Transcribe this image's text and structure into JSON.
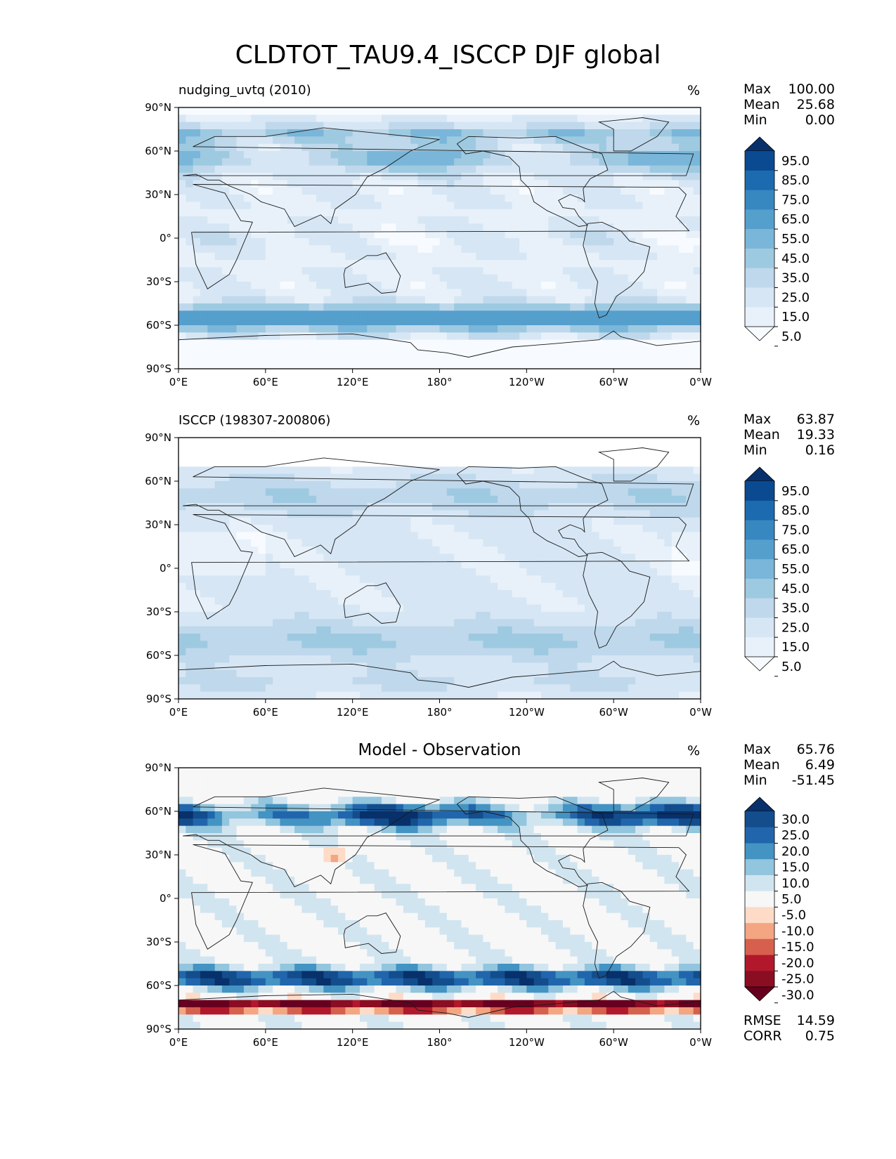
{
  "figure": {
    "title": "CLDTOT_TAU9.4_ISCCP DJF global"
  },
  "axes": {
    "lat_ticks": [
      "90°N",
      "60°N",
      "30°N",
      "0°",
      "30°S",
      "60°S",
      "90°S"
    ],
    "lon_ticks": [
      "0°E",
      "60°E",
      "120°E",
      "180°",
      "120°W",
      "60°W",
      "0°W"
    ]
  },
  "panels": [
    {
      "id": "model",
      "title": "nudging_uvtq (2010)",
      "title_position": "left",
      "units": "%",
      "stats": [
        {
          "label": "Max",
          "value": "100.00"
        },
        {
          "label": "Mean",
          "value": "25.68"
        },
        {
          "label": "Min",
          "value": "0.00"
        }
      ],
      "colorbar": {
        "ticks": [
          "95.0",
          "85.0",
          "75.0",
          "65.0",
          "55.0",
          "45.0",
          "35.0",
          "25.0",
          "15.0",
          "5.0"
        ],
        "colors": [
          "#08306b",
          "#0a4a90",
          "#1c6aaf",
          "#3787c0",
          "#559fcd",
          "#7ab6d9",
          "#9ecae1",
          "#bfd8ec",
          "#d6e6f4",
          "#e8f1fa",
          "#f7fbff"
        ]
      }
    },
    {
      "id": "obs",
      "title": "ISCCP (198307-200806)",
      "title_position": "left",
      "units": "%",
      "stats": [
        {
          "label": "Max",
          "value": "63.87"
        },
        {
          "label": "Mean",
          "value": "19.33"
        },
        {
          "label": "Min",
          "value": "0.16"
        }
      ],
      "colorbar": {
        "ticks": [
          "95.0",
          "85.0",
          "75.0",
          "65.0",
          "55.0",
          "45.0",
          "35.0",
          "25.0",
          "15.0",
          "5.0"
        ],
        "colors": [
          "#08306b",
          "#0a4a90",
          "#1c6aaf",
          "#3787c0",
          "#559fcd",
          "#7ab6d9",
          "#9ecae1",
          "#bfd8ec",
          "#d6e6f4",
          "#e8f1fa",
          "#f7fbff"
        ]
      }
    },
    {
      "id": "diff",
      "title": "Model - Observation",
      "title_position": "center",
      "units": "%",
      "stats": [
        {
          "label": "Max",
          "value": "65.76"
        },
        {
          "label": "Mean",
          "value": "6.49"
        },
        {
          "label": "Min",
          "value": "-51.45"
        }
      ],
      "extra_stats": [
        {
          "label": "RMSE",
          "value": "14.59"
        },
        {
          "label": "CORR",
          "value": "0.75"
        }
      ],
      "colorbar": {
        "ticks": [
          "30.0",
          "25.0",
          "20.0",
          "15.0",
          "10.0",
          "5.0",
          "-5.0",
          "-10.0",
          "-15.0",
          "-20.0",
          "-25.0",
          "-30.0"
        ],
        "colors": [
          "#08306b",
          "#134d8c",
          "#2166ac",
          "#4393c3",
          "#92c5de",
          "#d1e5f0",
          "#f7f7f7",
          "#fddbc7",
          "#f4a582",
          "#d6604d",
          "#b2182b",
          "#8b0d22",
          "#67001f"
        ]
      }
    }
  ]
}
